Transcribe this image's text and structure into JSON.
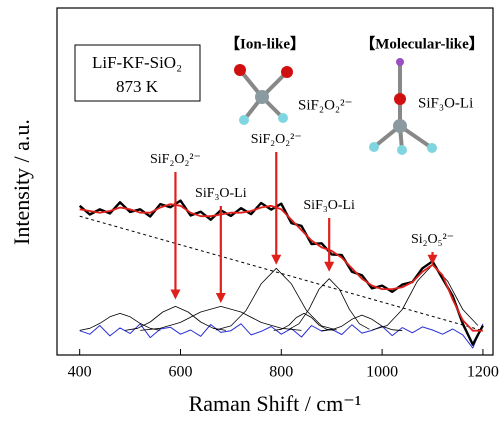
{
  "chart_data": {
    "type": "line",
    "xlabel": "Raman Shift / cm⁻¹",
    "ylabel": "Intensity / a.u.",
    "xlim": [
      355,
      1220
    ],
    "ylim": [
      0,
      100
    ],
    "xticks": [
      400,
      600,
      800,
      1000,
      1200
    ],
    "x": [
      400,
      420,
      440,
      460,
      480,
      500,
      520,
      540,
      560,
      580,
      600,
      620,
      640,
      660,
      680,
      700,
      720,
      740,
      760,
      780,
      800,
      820,
      840,
      860,
      880,
      900,
      920,
      940,
      960,
      980,
      1000,
      1020,
      1040,
      1060,
      1080,
      1100,
      1120,
      1140,
      1160,
      1180,
      1200
    ],
    "series": [
      {
        "color": "#2a2fd6",
        "width": 1,
        "values": [
          7,
          6,
          8.5,
          5.5,
          7.8,
          6.2,
          9,
          5,
          7.5,
          8,
          6,
          7.2,
          5.4,
          8.8,
          6.5,
          7,
          9,
          5.8,
          6.8,
          8.2,
          6,
          7.6,
          5.2,
          8.5,
          6.9,
          7.4,
          5.9,
          8.7,
          6.3,
          7.1,
          8.3,
          5.6,
          7.9,
          6.4,
          8.1,
          7.2,
          6,
          7.5,
          5.8,
          2,
          9
        ]
      },
      {
        "color": "#000000",
        "width": 0.8,
        "x": [
          400,
          420,
          440,
          460,
          480,
          500,
          520,
          540,
          560
        ],
        "values": [
          7.1,
          7.7,
          9.1,
          11,
          12,
          11,
          9.1,
          7.7,
          7.1
        ]
      },
      {
        "color": "#000000",
        "width": 0.8,
        "x": [
          490,
          515,
          540,
          565,
          590,
          615,
          640,
          665,
          690
        ],
        "values": [
          7.1,
          7.7,
          9.5,
          12.4,
          14,
          12.4,
          9.5,
          7.7,
          7.1
        ]
      },
      {
        "color": "#000000",
        "width": 0.8,
        "x": [
          520,
          560,
          600,
          640,
          680,
          720,
          760,
          800,
          840
        ],
        "values": [
          7.1,
          7.7,
          9.4,
          12.4,
          14,
          12.4,
          9.4,
          7.7,
          7.1
        ]
      },
      {
        "color": "#000000",
        "width": 0.8,
        "x": [
          670,
          700,
          730,
          760,
          790,
          820,
          850,
          880,
          910
        ],
        "values": [
          7.2,
          8.4,
          12.8,
          20.5,
          25,
          20.5,
          12.8,
          8.4,
          7.2
        ]
      },
      {
        "color": "#000000",
        "width": 0.8,
        "x": [
          785,
          800,
          815,
          830,
          845,
          860,
          875,
          890,
          905
        ],
        "values": [
          7.1,
          7.4,
          8.6,
          10.8,
          12,
          10.8,
          8.6,
          7.4,
          7.1
        ]
      },
      {
        "color": "#000000",
        "width": 0.8,
        "x": [
          815,
          835,
          855,
          875,
          895,
          915,
          935,
          955,
          975
        ],
        "values": [
          7.4,
          9,
          13.2,
          19,
          22,
          19,
          13.2,
          9,
          7.4
        ]
      },
      {
        "color": "#000000",
        "width": 0.8,
        "x": [
          880,
          900,
          920,
          940,
          960,
          980,
          1000,
          1020,
          1040
        ],
        "values": [
          7,
          7.3,
          8.3,
          10.3,
          11.5,
          10.3,
          8.3,
          7.3,
          7
        ]
      },
      {
        "color": "#000000",
        "width": 0.8,
        "x": [
          980,
          1010,
          1040,
          1070,
          1100,
          1130,
          1160,
          1190
        ],
        "values": [
          7.2,
          8.5,
          13.1,
          21.3,
          26,
          21.3,
          13.1,
          8.5
        ]
      },
      {
        "color": "#000000",
        "width": 1,
        "dashed": true,
        "x": [
          400,
          1200
        ],
        "values": [
          40,
          7
        ]
      },
      {
        "color": "#000000",
        "width": 2.4,
        "values": [
          43,
          40.5,
          42,
          40.8,
          44,
          41.2,
          42,
          39.9,
          43.5,
          42.6,
          44.5,
          40.2,
          41.3,
          39,
          41.7,
          40.1,
          42.3,
          40.6,
          43.8,
          41.9,
          43.6,
          38,
          37.2,
          32,
          32.2,
          29,
          28.8,
          24,
          23,
          19.2,
          20,
          18.2,
          20.3,
          21,
          25,
          27,
          22,
          17,
          9,
          3,
          8.5
        ]
      },
      {
        "color": "#e0201b",
        "width": 1.8,
        "values": [
          42,
          41.5,
          41,
          41.5,
          42.5,
          42,
          41,
          41,
          42.5,
          43.5,
          43,
          41,
          40,
          40,
          40.5,
          41,
          41,
          41.5,
          42.5,
          43,
          42,
          39,
          36,
          33,
          31,
          30,
          28,
          25,
          22,
          20,
          19,
          19,
          19.5,
          21,
          24,
          26,
          23,
          16,
          10,
          7,
          7
        ]
      }
    ],
    "annotations": [
      {
        "text": "SiF₂O₂²⁻",
        "x": 590,
        "y": 16
      },
      {
        "text": "SiF₃O-Li",
        "x": 680,
        "y": 15
      },
      {
        "text": "SiF₂O₂²⁻",
        "x": 790,
        "y": 26
      },
      {
        "text": "SiF₃O-Li",
        "x": 895,
        "y": 24
      },
      {
        "text": "Si₂O₅²⁻",
        "x": 1100,
        "y": 26
      }
    ],
    "arrow_color": "#e0201b",
    "inset": {
      "system": "LiF-KF-SiO₂",
      "temperature": "873 K"
    },
    "structures": [
      {
        "title": "【Ion-like】",
        "label": "SiF₂O₂²⁻"
      },
      {
        "title": "【Molecular-like】",
        "label": "SiF₃O-Li"
      }
    ]
  }
}
